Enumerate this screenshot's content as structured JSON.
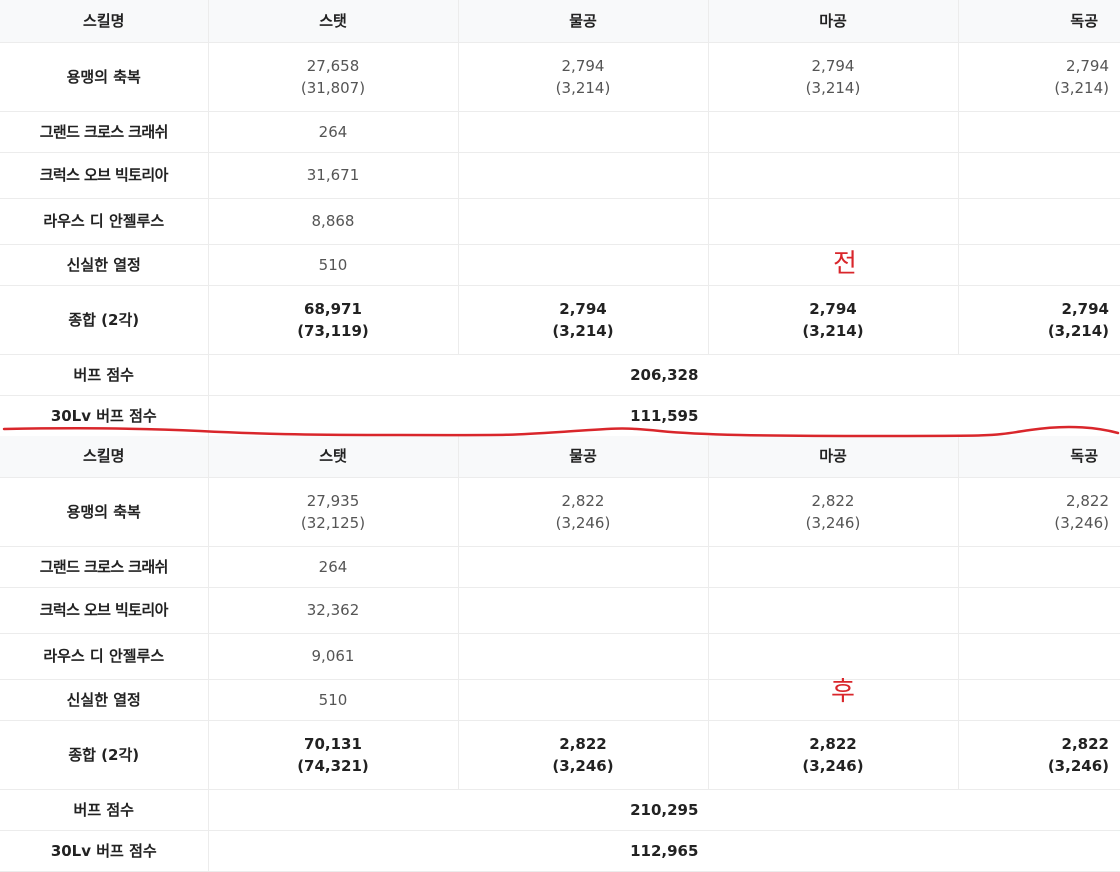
{
  "headers": [
    "스킬명",
    "스탯",
    "물공",
    "마공",
    "독공"
  ],
  "before": {
    "marker": "전",
    "rows": [
      {
        "name": "용맹의 축복",
        "cells": [
          [
            "27,658",
            "(31,807)"
          ],
          [
            "2,794",
            "(3,214)"
          ],
          [
            "2,794",
            "(3,214)"
          ],
          [
            "2,794",
            "(3,214)"
          ]
        ]
      },
      {
        "name": "그랜드 크로스 크래쉬",
        "stat": "264"
      },
      {
        "name": "크럭스 오브 빅토리아",
        "stat": "31,671"
      },
      {
        "name": "라우스 디 안젤루스",
        "stat": "8,868"
      },
      {
        "name": "신실한 열정",
        "stat": "510"
      }
    ],
    "total": {
      "name": "종합 (2각)",
      "cells": [
        [
          "68,971",
          "(73,119)"
        ],
        [
          "2,794",
          "(3,214)"
        ],
        [
          "2,794",
          "(3,214)"
        ],
        [
          "2,794",
          "(3,214)"
        ]
      ]
    },
    "buff_label": "버프 점수",
    "buff_score": "206,328",
    "buff30_label": "30Lv 버프 점수",
    "buff30_score": "111,595"
  },
  "after": {
    "marker": "후",
    "rows": [
      {
        "name": "용맹의 축복",
        "cells": [
          [
            "27,935",
            "(32,125)"
          ],
          [
            "2,822",
            "(3,246)"
          ],
          [
            "2,822",
            "(3,246)"
          ],
          [
            "2,822",
            "(3,246)"
          ]
        ]
      },
      {
        "name": "그랜드 크로스 크래쉬",
        "stat": "264"
      },
      {
        "name": "크럭스 오브 빅토리아",
        "stat": "32,362"
      },
      {
        "name": "라우스 디 안젤루스",
        "stat": "9,061"
      },
      {
        "name": "신실한 열정",
        "stat": "510"
      }
    ],
    "total": {
      "name": "종합 (2각)",
      "cells": [
        [
          "70,131",
          "(74,321)"
        ],
        [
          "2,822",
          "(3,246)"
        ],
        [
          "2,822",
          "(3,246)"
        ],
        [
          "2,822",
          "(3,246)"
        ]
      ]
    },
    "buff_label": "버프 점수",
    "buff_score": "210,295",
    "buff30_label": "30Lv 버프 점수",
    "buff30_score": "112,965"
  },
  "colors": {
    "marker": "#d9262b",
    "divider_line": "#d9262b",
    "header_bg": "#f8f9fa",
    "border": "#ececec"
  }
}
